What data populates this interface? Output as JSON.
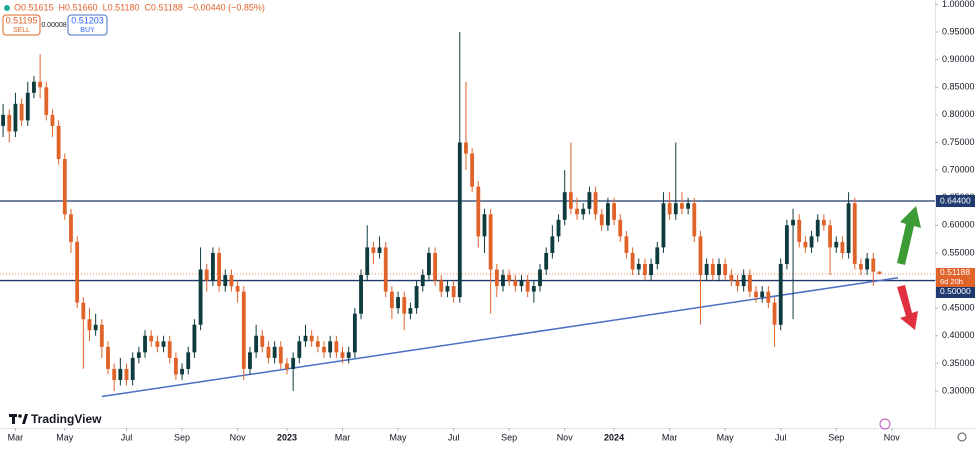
{
  "chart_data": {
    "type": "candlestick",
    "legend": [
      "O0.51615",
      "H0.51660",
      "L0.51180",
      "C0.51188",
      "−0.00440 (−0.85%)"
    ],
    "sell": {
      "price": "0.51195",
      "label": "SELL"
    },
    "spread": "0.00008",
    "buy": {
      "price": "0.51203",
      "label": "BUY"
    },
    "brand": "TradingView",
    "up_color": "#0d3b3e",
    "down_color": "#e0632a",
    "open": [
      0.78,
      0.8,
      0.77,
      0.82,
      0.79,
      0.84,
      0.86,
      0.85,
      0.8,
      0.78,
      0.72,
      0.62,
      0.57,
      0.46,
      0.43,
      0.41,
      0.42,
      0.38,
      0.34,
      0.32,
      0.34,
      0.32,
      0.36,
      0.37,
      0.4,
      0.39,
      0.38,
      0.39,
      0.36,
      0.33,
      0.34,
      0.37,
      0.42,
      0.52,
      0.5,
      0.55,
      0.49,
      0.51,
      0.49,
      0.48,
      0.34,
      0.37,
      0.4,
      0.38,
      0.36,
      0.38,
      0.35,
      0.34,
      0.36,
      0.39,
      0.4,
      0.39,
      0.38,
      0.37,
      0.39,
      0.37,
      0.36,
      0.37,
      0.44,
      0.51,
      0.56,
      0.55,
      0.56,
      0.48,
      0.45,
      0.47,
      0.44,
      0.45,
      0.49,
      0.51,
      0.55,
      0.5,
      0.48,
      0.49,
      0.47,
      0.75,
      0.73,
      0.67,
      0.58,
      0.62,
      0.52,
      0.49,
      0.51,
      0.5,
      0.49,
      0.5,
      0.48,
      0.49,
      0.52,
      0.55,
      0.58,
      0.61,
      0.66,
      0.63,
      0.62,
      0.63,
      0.66,
      0.62,
      0.6,
      0.64,
      0.61,
      0.58,
      0.55,
      0.52,
      0.53,
      0.51,
      0.53,
      0.56,
      0.64,
      0.62,
      0.64,
      0.63,
      0.64,
      0.58,
      0.51,
      0.53,
      0.51,
      0.53,
      0.51,
      0.5,
      0.49,
      0.51,
      0.48,
      0.47,
      0.48,
      0.46,
      0.42,
      0.53,
      0.6,
      0.61,
      0.57,
      0.56,
      0.58,
      0.61,
      0.6,
      0.56,
      0.57,
      0.55,
      0.64,
      0.53,
      0.52,
      0.54,
      0.51615
    ],
    "high": [
      0.82,
      0.81,
      0.84,
      0.83,
      0.86,
      0.87,
      0.91,
      0.86,
      0.81,
      0.79,
      0.73,
      0.63,
      0.58,
      0.47,
      0.45,
      0.44,
      0.43,
      0.39,
      0.35,
      0.36,
      0.35,
      0.37,
      0.38,
      0.41,
      0.41,
      0.4,
      0.4,
      0.4,
      0.37,
      0.35,
      0.38,
      0.43,
      0.56,
      0.53,
      0.56,
      0.56,
      0.52,
      0.52,
      0.5,
      0.49,
      0.38,
      0.42,
      0.41,
      0.39,
      0.39,
      0.39,
      0.36,
      0.37,
      0.4,
      0.42,
      0.41,
      0.4,
      0.39,
      0.4,
      0.4,
      0.38,
      0.38,
      0.45,
      0.52,
      0.6,
      0.57,
      0.58,
      0.57,
      0.49,
      0.48,
      0.48,
      0.46,
      0.5,
      0.52,
      0.56,
      0.56,
      0.51,
      0.5,
      0.5,
      0.95,
      0.86,
      0.74,
      0.68,
      0.63,
      0.63,
      0.53,
      0.52,
      0.52,
      0.51,
      0.51,
      0.51,
      0.5,
      0.53,
      0.56,
      0.6,
      0.62,
      0.7,
      0.75,
      0.65,
      0.64,
      0.67,
      0.67,
      0.63,
      0.65,
      0.65,
      0.62,
      0.59,
      0.56,
      0.54,
      0.54,
      0.54,
      0.57,
      0.66,
      0.66,
      0.75,
      0.66,
      0.65,
      0.65,
      0.59,
      0.54,
      0.54,
      0.54,
      0.54,
      0.52,
      0.51,
      0.52,
      0.52,
      0.49,
      0.49,
      0.49,
      0.47,
      0.54,
      0.61,
      0.63,
      0.62,
      0.58,
      0.59,
      0.62,
      0.62,
      0.61,
      0.58,
      0.58,
      0.66,
      0.65,
      0.54,
      0.55,
      0.55,
      0.5166
    ],
    "low": [
      0.76,
      0.75,
      0.76,
      0.78,
      0.78,
      0.83,
      0.83,
      0.79,
      0.76,
      0.71,
      0.61,
      0.55,
      0.45,
      0.34,
      0.39,
      0.4,
      0.36,
      0.33,
      0.3,
      0.31,
      0.31,
      0.31,
      0.35,
      0.36,
      0.38,
      0.37,
      0.37,
      0.35,
      0.32,
      0.32,
      0.33,
      0.36,
      0.41,
      0.48,
      0.49,
      0.48,
      0.48,
      0.48,
      0.46,
      0.32,
      0.33,
      0.36,
      0.37,
      0.35,
      0.35,
      0.34,
      0.33,
      0.3,
      0.35,
      0.38,
      0.38,
      0.37,
      0.36,
      0.36,
      0.36,
      0.35,
      0.35,
      0.36,
      0.43,
      0.5,
      0.53,
      0.54,
      0.47,
      0.43,
      0.44,
      0.41,
      0.43,
      0.44,
      0.48,
      0.5,
      0.49,
      0.47,
      0.47,
      0.46,
      0.46,
      0.7,
      0.66,
      0.56,
      0.55,
      0.44,
      0.47,
      0.48,
      0.49,
      0.48,
      0.48,
      0.47,
      0.46,
      0.48,
      0.51,
      0.54,
      0.57,
      0.6,
      0.62,
      0.61,
      0.61,
      0.62,
      0.61,
      0.59,
      0.59,
      0.6,
      0.57,
      0.54,
      0.51,
      0.51,
      0.5,
      0.5,
      0.52,
      0.55,
      0.61,
      0.61,
      0.62,
      0.62,
      0.57,
      0.42,
      0.5,
      0.5,
      0.5,
      0.5,
      0.49,
      0.48,
      0.48,
      0.47,
      0.46,
      0.46,
      0.45,
      0.38,
      0.41,
      0.52,
      0.43,
      0.56,
      0.55,
      0.55,
      0.57,
      0.59,
      0.51,
      0.55,
      0.54,
      0.54,
      0.52,
      0.51,
      0.51,
      0.49,
      0.5118
    ],
    "close": [
      0.8,
      0.77,
      0.82,
      0.79,
      0.84,
      0.86,
      0.85,
      0.8,
      0.78,
      0.72,
      0.62,
      0.57,
      0.46,
      0.43,
      0.41,
      0.42,
      0.38,
      0.34,
      0.32,
      0.34,
      0.32,
      0.36,
      0.37,
      0.4,
      0.39,
      0.38,
      0.39,
      0.36,
      0.33,
      0.34,
      0.37,
      0.42,
      0.52,
      0.5,
      0.55,
      0.49,
      0.51,
      0.49,
      0.48,
      0.34,
      0.37,
      0.4,
      0.38,
      0.36,
      0.38,
      0.35,
      0.34,
      0.36,
      0.39,
      0.4,
      0.39,
      0.38,
      0.37,
      0.39,
      0.37,
      0.36,
      0.37,
      0.44,
      0.51,
      0.56,
      0.55,
      0.56,
      0.48,
      0.45,
      0.47,
      0.44,
      0.45,
      0.49,
      0.51,
      0.55,
      0.5,
      0.48,
      0.49,
      0.47,
      0.75,
      0.73,
      0.67,
      0.58,
      0.62,
      0.52,
      0.49,
      0.51,
      0.5,
      0.49,
      0.5,
      0.48,
      0.49,
      0.52,
      0.55,
      0.58,
      0.61,
      0.66,
      0.63,
      0.62,
      0.63,
      0.66,
      0.62,
      0.6,
      0.64,
      0.61,
      0.58,
      0.55,
      0.52,
      0.53,
      0.51,
      0.53,
      0.56,
      0.64,
      0.62,
      0.64,
      0.63,
      0.64,
      0.58,
      0.51,
      0.53,
      0.51,
      0.53,
      0.51,
      0.5,
      0.49,
      0.51,
      0.48,
      0.47,
      0.48,
      0.46,
      0.42,
      0.53,
      0.6,
      0.61,
      0.57,
      0.56,
      0.58,
      0.61,
      0.6,
      0.56,
      0.57,
      0.55,
      0.64,
      0.53,
      0.52,
      0.54,
      0.516,
      0.51188
    ],
    "last_price_label": "0.51188",
    "countdown": "6d 20h",
    "levels": [
      {
        "value": 0.644,
        "label": "0.64400"
      },
      {
        "value": 0.5,
        "label": "0.50000"
      }
    ],
    "level_color": "#1e3a6e",
    "trendline": {
      "x": [
        16,
        145
      ],
      "y": [
        0.29,
        0.505
      ],
      "color": "#4a6fc4"
    },
    "xlim": [
      -0.5,
      151
    ],
    "xticks": [
      {
        "value": 2,
        "label": "Mar"
      },
      {
        "value": 10,
        "label": "May"
      },
      {
        "value": 20,
        "label": "Jul"
      },
      {
        "value": 29,
        "label": "Sep"
      },
      {
        "value": 38,
        "label": "Nov"
      },
      {
        "value": 46,
        "label": "2023"
      },
      {
        "value": 55,
        "label": "Mar"
      },
      {
        "value": 64,
        "label": "May"
      },
      {
        "value": 73,
        "label": "Jul"
      },
      {
        "value": 82,
        "label": "Sep"
      },
      {
        "value": 91,
        "label": "Nov"
      },
      {
        "value": 99,
        "label": "2024"
      },
      {
        "value": 108,
        "label": "Mar"
      },
      {
        "value": 117,
        "label": "May"
      },
      {
        "value": 126,
        "label": "Jul"
      },
      {
        "value": 135,
        "label": "Sep"
      },
      {
        "value": 144,
        "label": "Nov"
      }
    ],
    "ylim": [
      0.233,
      1.008
    ],
    "yticks": [
      {
        "value": 0.3,
        "label": "0.30000"
      },
      {
        "value": 0.35,
        "label": "0.35000"
      },
      {
        "value": 0.4,
        "label": "0.40000"
      },
      {
        "value": 0.45,
        "label": "0.45000"
      },
      {
        "value": 0.5,
        "label": "0.50000"
      },
      {
        "value": 0.55,
        "label": "0.55000"
      },
      {
        "value": 0.6,
        "label": "0.60000"
      },
      {
        "value": 0.65,
        "label": "0.65000"
      },
      {
        "value": 0.7,
        "label": "0.70000"
      },
      {
        "value": 0.75,
        "label": "0.75000"
      },
      {
        "value": 0.8,
        "label": "0.80000"
      },
      {
        "value": 0.85,
        "label": "0.85000"
      },
      {
        "value": 0.9,
        "label": "0.90000"
      },
      {
        "value": 0.95,
        "label": "0.95000"
      },
      {
        "value": 1.0,
        "label": "1.00000"
      }
    ],
    "grid": false
  }
}
